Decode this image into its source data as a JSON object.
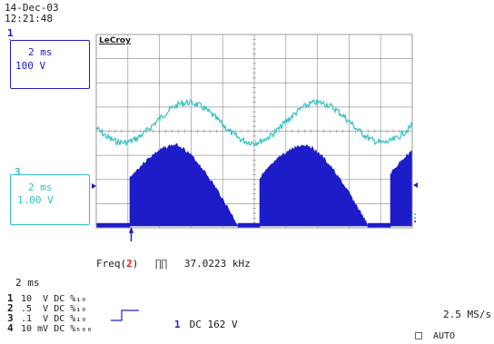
{
  "header": {
    "date": "14-Dec-03",
    "time": "12:21:48"
  },
  "brand": "LeCroy",
  "channels": {
    "ch1": {
      "marker": "1",
      "timebase": "2 ms",
      "volts": "100 V",
      "color": "#1c1cc8"
    },
    "ch3": {
      "marker": "3",
      "timebase": "2 ms",
      "volts": "1.00 V",
      "color": "#30c0c0"
    }
  },
  "measurement": {
    "label": "Freq(",
    "channel": "2",
    "close": ")",
    "symbol": "∏∏",
    "value": "37.0223 kHz"
  },
  "timebase_lower": "2 ms",
  "channel_rows": [
    {
      "num": "1",
      "volts": "10",
      "unit": "V",
      "coupling": "DC",
      "bw": "%₁₀"
    },
    {
      "num": "2",
      "volts": ".5",
      "unit": "V",
      "coupling": "DC",
      "bw": "%₁₀"
    },
    {
      "num": "3",
      "volts": ".1",
      "unit": "V",
      "coupling": "DC",
      "bw": "%₁₀"
    },
    {
      "num": "4",
      "volts": "10",
      "unit": "mV",
      "coupling": "DC",
      "bw": "%₅₀₀"
    }
  ],
  "trigger": {
    "channel": "1",
    "coupling": "DC",
    "level": "162 V"
  },
  "sample_rate": "2.5 MS/s",
  "mode": "AUTO",
  "colors": {
    "channel1": "#1c1cc8",
    "channel3": "#30c0c0",
    "grid": "#9a9a9a",
    "measurement_channel": "#e02020"
  }
}
